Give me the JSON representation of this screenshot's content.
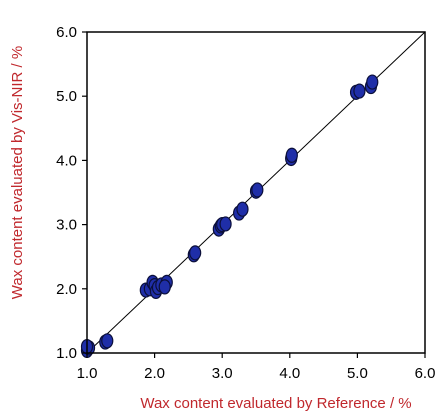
{
  "chart_data": {
    "type": "scatter",
    "title": "",
    "xlabel": "Wax content evaluated by Reference / %",
    "ylabel": "Wax content evaluated by Vis-NIR / %",
    "xlim": [
      1.0,
      6.0
    ],
    "ylim": [
      1.0,
      6.0
    ],
    "xticks": [
      "1.0",
      "2.0",
      "3.0",
      "4.0",
      "5.0",
      "6.0"
    ],
    "yticks": [
      "1.0",
      "2.0",
      "3.0",
      "4.0",
      "5.0",
      "6.0"
    ],
    "grid": false,
    "legend": false,
    "reference_line": {
      "from": [
        1.0,
        1.0
      ],
      "to": [
        6.0,
        6.0
      ]
    },
    "colors": {
      "axis_title": "#c0282d",
      "point_fill": "#1f2ea8",
      "point_stroke": "#0b0f3a",
      "line": "#000000"
    },
    "points": [
      {
        "x": 1.0,
        "y": 1.04
      },
      {
        "x": 1.03,
        "y": 1.08
      },
      {
        "x": 1.0,
        "y": 1.1
      },
      {
        "x": 1.27,
        "y": 1.17
      },
      {
        "x": 1.3,
        "y": 1.19
      },
      {
        "x": 1.87,
        "y": 1.98
      },
      {
        "x": 1.93,
        "y": 2.0
      },
      {
        "x": 1.97,
        "y": 2.1
      },
      {
        "x": 2.0,
        "y": 2.05
      },
      {
        "x": 2.02,
        "y": 1.96
      },
      {
        "x": 2.05,
        "y": 2.02
      },
      {
        "x": 2.1,
        "y": 2.06
      },
      {
        "x": 2.18,
        "y": 2.1
      },
      {
        "x": 2.15,
        "y": 2.03
      },
      {
        "x": 2.58,
        "y": 2.53
      },
      {
        "x": 2.6,
        "y": 2.56
      },
      {
        "x": 2.95,
        "y": 2.93
      },
      {
        "x": 2.98,
        "y": 2.98
      },
      {
        "x": 3.0,
        "y": 3.0
      },
      {
        "x": 3.05,
        "y": 3.01
      },
      {
        "x": 3.25,
        "y": 3.18
      },
      {
        "x": 3.3,
        "y": 3.24
      },
      {
        "x": 3.5,
        "y": 3.52
      },
      {
        "x": 3.52,
        "y": 3.54
      },
      {
        "x": 4.02,
        "y": 4.03
      },
      {
        "x": 4.03,
        "y": 4.08
      },
      {
        "x": 4.98,
        "y": 5.06
      },
      {
        "x": 5.03,
        "y": 5.08
      },
      {
        "x": 5.2,
        "y": 5.15
      },
      {
        "x": 5.22,
        "y": 5.22
      }
    ]
  }
}
